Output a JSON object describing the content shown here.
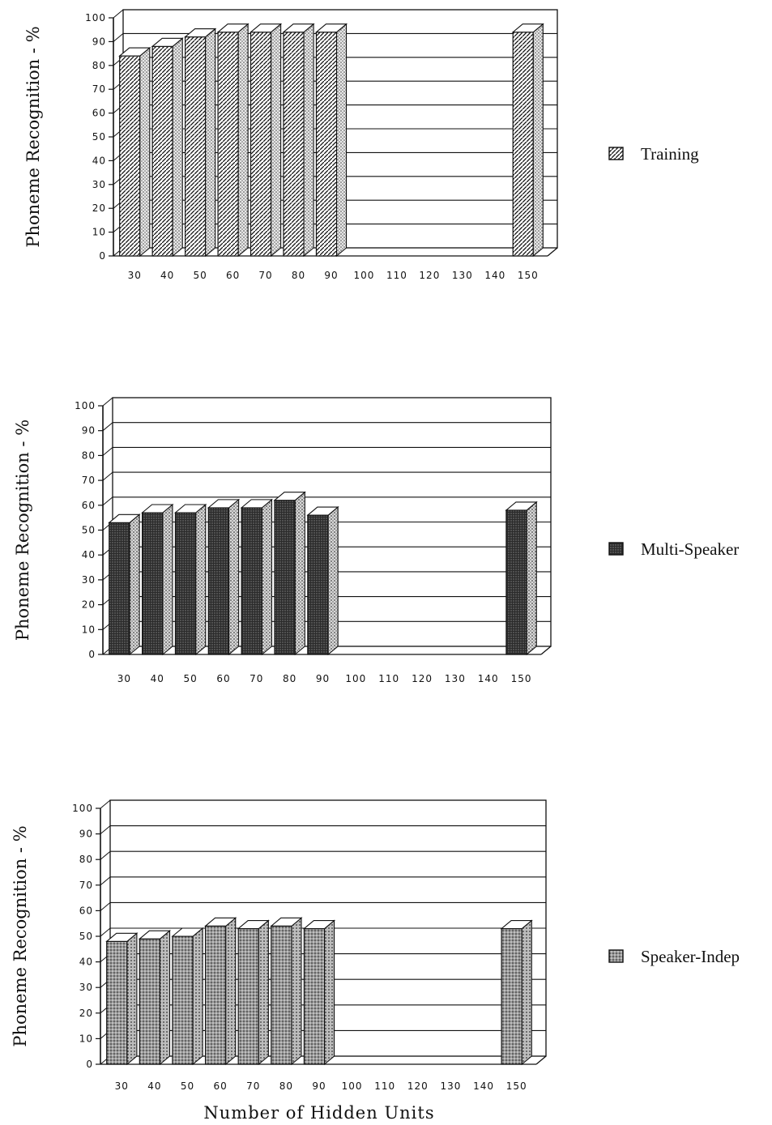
{
  "chart_data": [
    {
      "type": "bar",
      "ylabel": "Phoneme Recognition - %",
      "xlabel": "",
      "categories": [
        "30",
        "40",
        "50",
        "60",
        "70",
        "80",
        "90",
        "100",
        "110",
        "120",
        "130",
        "140",
        "150"
      ],
      "yticks": [
        "0",
        "10",
        "20",
        "30",
        "40",
        "50",
        "60",
        "70",
        "80",
        "90",
        "100"
      ],
      "ylim": [
        0,
        100
      ],
      "series": [
        {
          "name": "Training",
          "values": [
            84,
            88,
            92,
            94,
            94,
            94,
            94,
            null,
            null,
            null,
            null,
            null,
            94
          ]
        }
      ],
      "legend_position": "right",
      "grid": true
    },
    {
      "type": "bar",
      "ylabel": "Phoneme Recognition - %",
      "xlabel": "",
      "categories": [
        "30",
        "40",
        "50",
        "60",
        "70",
        "80",
        "90",
        "100",
        "110",
        "120",
        "130",
        "140",
        "150"
      ],
      "yticks": [
        "0",
        "10",
        "20",
        "30",
        "40",
        "50",
        "60",
        "70",
        "80",
        "90",
        "100"
      ],
      "ylim": [
        0,
        100
      ],
      "series": [
        {
          "name": "Multi-Speaker",
          "values": [
            53,
            57,
            57,
            59,
            59,
            62,
            56,
            null,
            null,
            null,
            null,
            null,
            58
          ]
        }
      ],
      "legend_position": "right",
      "grid": true
    },
    {
      "type": "bar",
      "ylabel": "Phoneme Recognition - %",
      "xlabel": "Number of Hidden Units",
      "categories": [
        "30",
        "40",
        "50",
        "60",
        "70",
        "80",
        "90",
        "100",
        "110",
        "120",
        "130",
        "140",
        "150"
      ],
      "yticks": [
        "0",
        "10",
        "20",
        "30",
        "40",
        "50",
        "60",
        "70",
        "80",
        "90",
        "100"
      ],
      "ylim": [
        0,
        100
      ],
      "series": [
        {
          "name": "Speaker-Indep",
          "values": [
            48,
            49,
            50,
            54,
            53,
            54,
            53,
            null,
            null,
            null,
            null,
            null,
            53
          ]
        }
      ],
      "legend_position": "right",
      "grid": true
    }
  ]
}
